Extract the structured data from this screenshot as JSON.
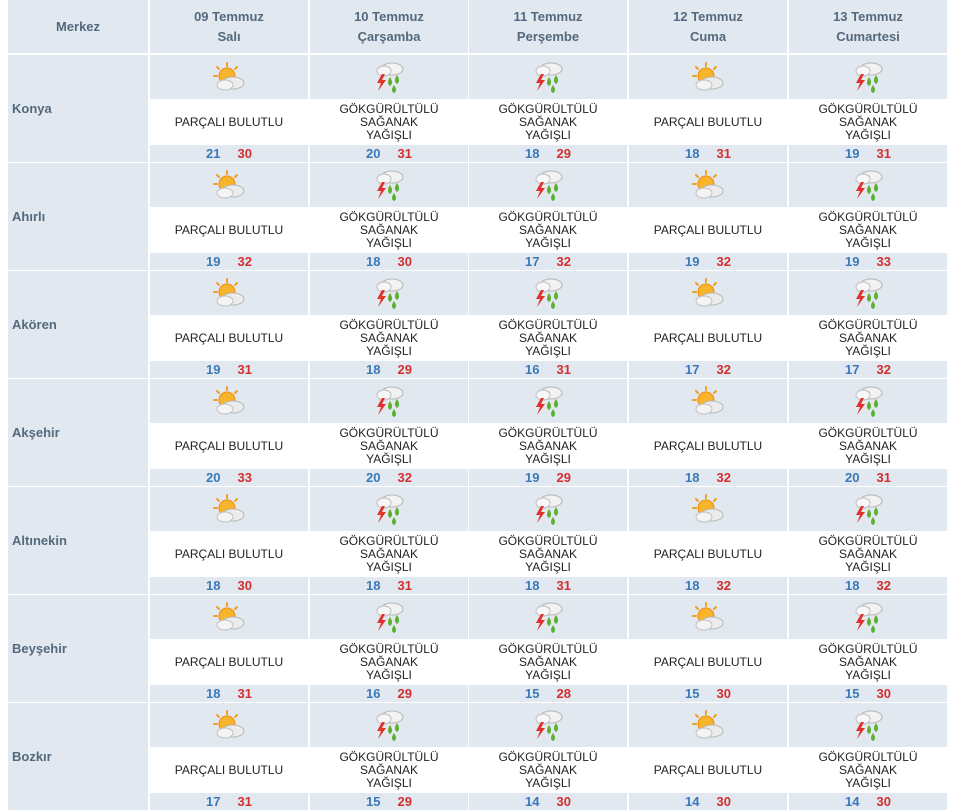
{
  "header": {
    "city_label": "Merkez",
    "days": [
      {
        "date": "09 Temmuz",
        "weekday": "Salı"
      },
      {
        "date": "10 Temmuz",
        "weekday": "Çarşamba"
      },
      {
        "date": "11 Temmuz",
        "weekday": "Perşembe"
      },
      {
        "date": "12 Temmuz",
        "weekday": "Cuma"
      },
      {
        "date": "13 Temmuz",
        "weekday": "Cumartesi"
      }
    ]
  },
  "conditions": {
    "partly_cloudy": {
      "label": "PARÇALI BULUTLU",
      "icon": "partly-cloudy-icon"
    },
    "thunder_showers": {
      "label": "GÖKGÜRÜLTÜLÜ SAĞANAK YAĞIŞLI",
      "icon": "thunder-showers-icon"
    }
  },
  "colors": {
    "header_bg": "#e1e8ef",
    "header_text": "#54697e",
    "min_temp": "#3a79b8",
    "max_temp": "#d32f2f"
  },
  "rows": [
    {
      "city": "Konya",
      "days": [
        {
          "condition": "PARÇALI BULUTLU",
          "min": "21",
          "max": "30"
        },
        {
          "condition": "GÖKGÜRÜLTÜLÜ SAĞANAK YAĞIŞLI",
          "min": "20",
          "max": "31"
        },
        {
          "condition": "GÖKGÜRÜLTÜLÜ SAĞANAK YAĞIŞLI",
          "min": "18",
          "max": "29"
        },
        {
          "condition": "PARÇALI BULUTLU",
          "min": "18",
          "max": "31"
        },
        {
          "condition": "GÖKGÜRÜLTÜLÜ SAĞANAK YAĞIŞLI",
          "min": "19",
          "max": "31"
        }
      ]
    },
    {
      "city": "Ahırlı",
      "days": [
        {
          "condition": "PARÇALI BULUTLU",
          "min": "19",
          "max": "32"
        },
        {
          "condition": "GÖKGÜRÜLTÜLÜ SAĞANAK YAĞIŞLI",
          "min": "18",
          "max": "30"
        },
        {
          "condition": "GÖKGÜRÜLTÜLÜ SAĞANAK YAĞIŞLI",
          "min": "17",
          "max": "32"
        },
        {
          "condition": "PARÇALI BULUTLU",
          "min": "19",
          "max": "32"
        },
        {
          "condition": "GÖKGÜRÜLTÜLÜ SAĞANAK YAĞIŞLI",
          "min": "19",
          "max": "33"
        }
      ]
    },
    {
      "city": "Akören",
      "days": [
        {
          "condition": "PARÇALI BULUTLU",
          "min": "19",
          "max": "31"
        },
        {
          "condition": "GÖKGÜRÜLTÜLÜ SAĞANAK YAĞIŞLI",
          "min": "18",
          "max": "29"
        },
        {
          "condition": "GÖKGÜRÜLTÜLÜ SAĞANAK YAĞIŞLI",
          "min": "16",
          "max": "31"
        },
        {
          "condition": "PARÇALI BULUTLU",
          "min": "17",
          "max": "32"
        },
        {
          "condition": "GÖKGÜRÜLTÜLÜ SAĞANAK YAĞIŞLI",
          "min": "17",
          "max": "32"
        }
      ]
    },
    {
      "city": "Akşehir",
      "days": [
        {
          "condition": "PARÇALI BULUTLU",
          "min": "20",
          "max": "33"
        },
        {
          "condition": "GÖKGÜRÜLTÜLÜ SAĞANAK YAĞIŞLI",
          "min": "20",
          "max": "32"
        },
        {
          "condition": "GÖKGÜRÜLTÜLÜ SAĞANAK YAĞIŞLI",
          "min": "19",
          "max": "29"
        },
        {
          "condition": "PARÇALI BULUTLU",
          "min": "18",
          "max": "32"
        },
        {
          "condition": "GÖKGÜRÜLTÜLÜ SAĞANAK YAĞIŞLI",
          "min": "20",
          "max": "31"
        }
      ]
    },
    {
      "city": "Altınekin",
      "days": [
        {
          "condition": "PARÇALI BULUTLU",
          "min": "18",
          "max": "30"
        },
        {
          "condition": "GÖKGÜRÜLTÜLÜ SAĞANAK YAĞIŞLI",
          "min": "18",
          "max": "31"
        },
        {
          "condition": "GÖKGÜRÜLTÜLÜ SAĞANAK YAĞIŞLI",
          "min": "18",
          "max": "31"
        },
        {
          "condition": "PARÇALI BULUTLU",
          "min": "18",
          "max": "32"
        },
        {
          "condition": "GÖKGÜRÜLTÜLÜ SAĞANAK YAĞIŞLI",
          "min": "18",
          "max": "32"
        }
      ]
    },
    {
      "city": "Beyşehir",
      "days": [
        {
          "condition": "PARÇALI BULUTLU",
          "min": "18",
          "max": "31"
        },
        {
          "condition": "GÖKGÜRÜLTÜLÜ SAĞANAK YAĞIŞLI",
          "min": "16",
          "max": "29"
        },
        {
          "condition": "GÖKGÜRÜLTÜLÜ SAĞANAK YAĞIŞLI",
          "min": "15",
          "max": "28"
        },
        {
          "condition": "PARÇALI BULUTLU",
          "min": "15",
          "max": "30"
        },
        {
          "condition": "GÖKGÜRÜLTÜLÜ SAĞANAK YAĞIŞLI",
          "min": "15",
          "max": "30"
        }
      ]
    },
    {
      "city": "Bozkır",
      "days": [
        {
          "condition": "PARÇALI BULUTLU",
          "min": "17",
          "max": "31"
        },
        {
          "condition": "GÖKGÜRÜLTÜLÜ SAĞANAK YAĞIŞLI",
          "min": "15",
          "max": "29"
        },
        {
          "condition": "GÖKGÜRÜLTÜLÜ SAĞANAK YAĞIŞLI",
          "min": "14",
          "max": "30"
        },
        {
          "condition": "PARÇALI BULUTLU",
          "min": "14",
          "max": "30"
        },
        {
          "condition": "GÖKGÜRÜLTÜLÜ SAĞANAK YAĞIŞLI",
          "min": "14",
          "max": "30"
        }
      ]
    }
  ]
}
